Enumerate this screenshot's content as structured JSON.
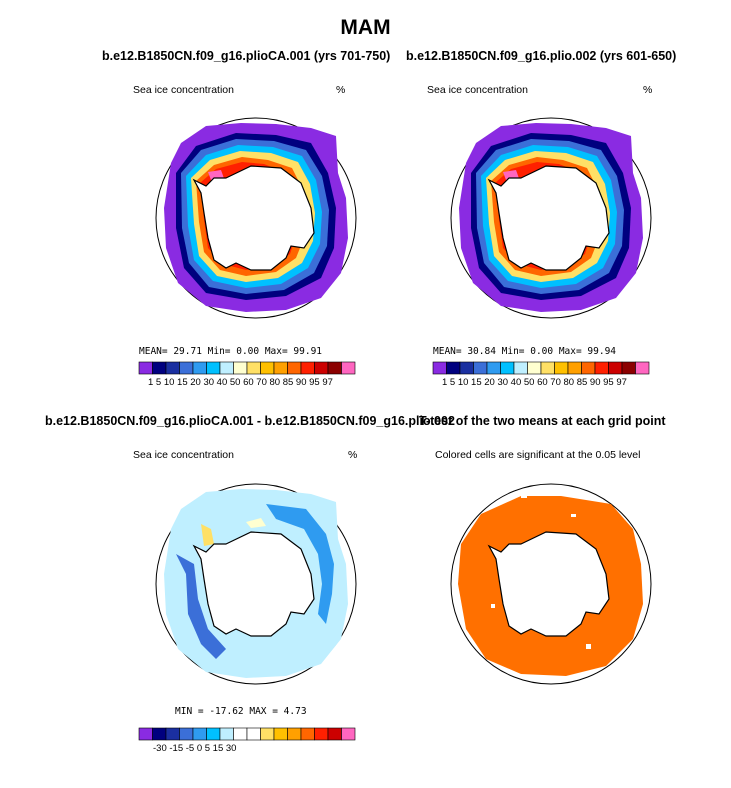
{
  "figure": {
    "title": "MAM"
  },
  "panels": [
    {
      "title": "b.e12.B1850CN.f09_g16.plioCA.001 (yrs 701-750)",
      "left_label": "Sea ice concentration",
      "right_label": "%",
      "stats": "MEAN=  29.71  Min=   0.00  Max=  99.91"
    },
    {
      "title": "b.e12.B1850CN.f09_g16.plio.002 (yrs 601-650)",
      "left_label": "Sea ice concentration",
      "right_label": "%",
      "stats": "MEAN=  30.84  Min=   0.00  Max=  99.94"
    },
    {
      "title": "b.e12.B1850CN.f09_g16.plioCA.001 - b.e12.B1850CN.f09_g16.plio.002",
      "left_label": "Sea ice concentration",
      "right_label": "%",
      "stats": "MIN = -17.62  MAX =   4.73"
    },
    {
      "title": "T-test of the two means at each grid point",
      "subtitle": "Colored cells are significant at the 0.05 level"
    }
  ],
  "colorbar_conc": {
    "colors": [
      "#8a2be2",
      "#00007f",
      "#1a2fa0",
      "#3b6fd8",
      "#2f9bf0",
      "#00c0ff",
      "#bfefff",
      "#ffffd0",
      "#ffe066",
      "#ffc000",
      "#ffa000",
      "#ff6600",
      "#ff2000",
      "#cc0000",
      "#8b0000",
      "#ff66c0"
    ],
    "tick_text": "1  5 10 15 20 30 40 50 60 70 80 85 90 95 97"
  },
  "colorbar_diff": {
    "colors": [
      "#8a2be2",
      "#00007f",
      "#1a2fa0",
      "#3b6fd8",
      "#2f9bf0",
      "#00c0ff",
      "#bfefff",
      "#ffffff",
      "#ffffff",
      "#ffe066",
      "#ffc000",
      "#ffa000",
      "#ff6600",
      "#ff2000",
      "#cc0000",
      "#ff66c0"
    ],
    "tick_text": "-30  -15   -5    0    5    15   30"
  },
  "colors": {
    "significance": "#ff7000",
    "land": "#ffffff",
    "coast": "#000000"
  }
}
